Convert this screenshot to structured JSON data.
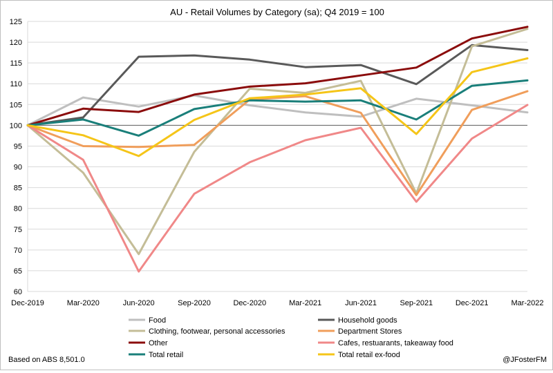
{
  "chart_data": {
    "type": "line",
    "title": "AU - Retail Volumes by Category (sa); Q4 2019 = 100",
    "categories": [
      "Dec-2019",
      "Mar-2020",
      "Jun-2020",
      "Sep-2020",
      "Dec-2020",
      "Mar-2021",
      "Jun-2021",
      "Sep-2021",
      "Dec-2021",
      "Mar-2022"
    ],
    "ylim": [
      60,
      125
    ],
    "yticks": [
      60,
      65,
      70,
      75,
      80,
      85,
      90,
      95,
      100,
      105,
      110,
      115,
      120,
      125
    ],
    "grid": "horizontal",
    "legend_position": "bottom",
    "series": [
      {
        "name": "Food",
        "color": "#bfbfbf",
        "values": [
          100,
          106.7,
          104.5,
          107.2,
          104.8,
          103.1,
          102.1,
          106.4,
          104.8,
          103.1
        ]
      },
      {
        "name": "Household goods",
        "color": "#595959",
        "values": [
          100,
          101.9,
          116.5,
          116.8,
          115.8,
          114.0,
          114.5,
          109.9,
          119.3,
          118.1
        ]
      },
      {
        "name": "Clothing, footwear, personal accessories",
        "color": "#c4bd97",
        "values": [
          100,
          88.6,
          69.0,
          93.6,
          108.8,
          107.8,
          110.7,
          83.6,
          119.0,
          123.2
        ]
      },
      {
        "name": "Department Stores",
        "color": "#f09e5b",
        "values": [
          100,
          95.0,
          94.8,
          95.3,
          106.2,
          107.0,
          103.0,
          83.2,
          103.7,
          108.2
        ]
      },
      {
        "name": "Other",
        "color": "#8b0c0c",
        "values": [
          100,
          104.0,
          103.2,
          107.4,
          109.3,
          110.1,
          112.0,
          113.9,
          120.9,
          123.7
        ]
      },
      {
        "name": "Cafes, restuarants, takeaway food",
        "color": "#f08888",
        "values": [
          100,
          91.7,
          64.8,
          83.5,
          91.1,
          96.4,
          99.4,
          81.6,
          96.8,
          104.9
        ]
      },
      {
        "name": "Total retail",
        "color": "#1a7f7a",
        "values": [
          100,
          101.4,
          97.5,
          103.9,
          106.0,
          105.7,
          106.0,
          101.4,
          109.5,
          110.8
        ]
      },
      {
        "name": "Total retail ex-food",
        "color": "#f5c518",
        "values": [
          100,
          97.6,
          92.6,
          101.3,
          106.5,
          107.4,
          108.9,
          97.9,
          112.8,
          116.1
        ]
      }
    ]
  },
  "footer": {
    "source": "Based on ABS 8,501.0",
    "credit": "@JFosterFM"
  }
}
